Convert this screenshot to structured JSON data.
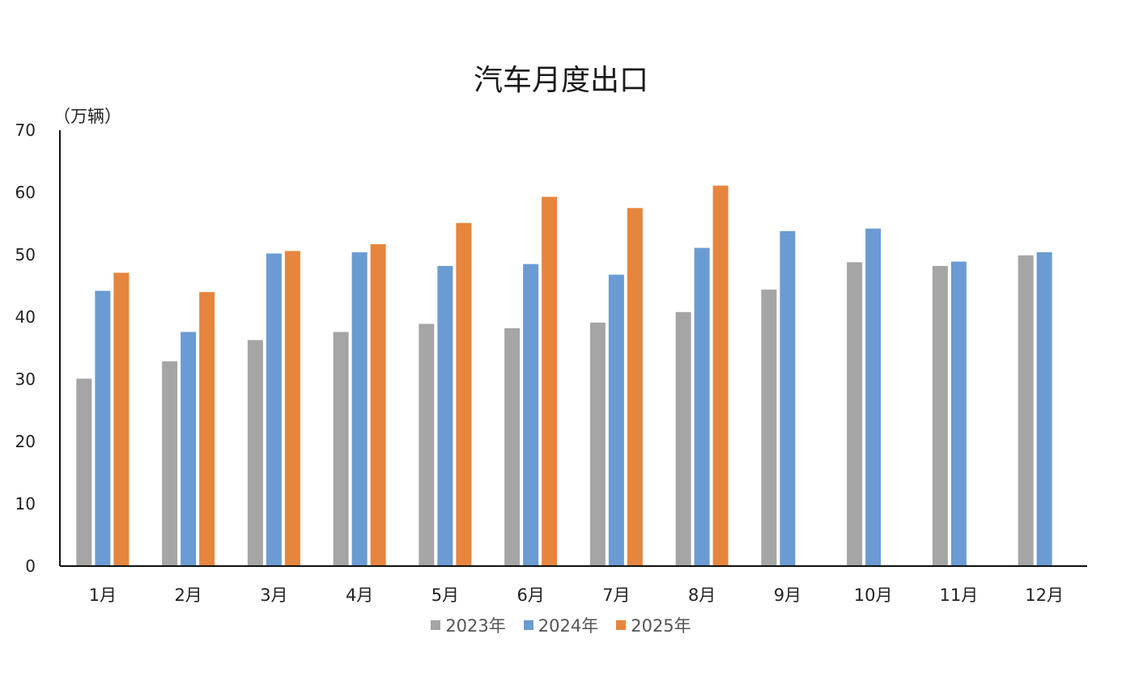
{
  "chart_data": {
    "type": "bar",
    "title": "汽车月度出口",
    "unit_label": "（万辆）",
    "categories": [
      "1月",
      "2月",
      "3月",
      "4月",
      "5月",
      "6月",
      "7月",
      "8月",
      "9月",
      "10月",
      "11月",
      "12月"
    ],
    "series": [
      {
        "name": "2023年",
        "color": "#a5a5a5",
        "values": [
          30.1,
          32.9,
          36.3,
          37.6,
          38.9,
          38.2,
          39.1,
          40.8,
          44.4,
          48.8,
          48.2,
          49.9
        ]
      },
      {
        "name": "2024年",
        "color": "#6a9bd3",
        "values": [
          44.2,
          37.6,
          50.2,
          50.4,
          48.2,
          48.5,
          46.8,
          51.1,
          53.8,
          54.2,
          48.9,
          50.4
        ]
      },
      {
        "name": "2025年",
        "color": "#e6853e",
        "values": [
          47.1,
          44.0,
          50.6,
          51.7,
          55.1,
          59.3,
          57.5,
          61.1,
          null,
          null,
          null,
          null
        ]
      }
    ],
    "ylim": [
      0,
      70
    ],
    "yticks": [
      0,
      10,
      20,
      30,
      40,
      50,
      60,
      70
    ],
    "grid": false,
    "legend_position": "bottom"
  }
}
